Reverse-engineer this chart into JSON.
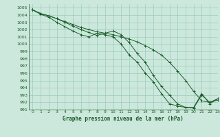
{
  "title": "Graphe pression niveau de la mer (hPa)",
  "bg_color": "#cce8dc",
  "grid_color": "#99ccbb",
  "line_color": "#1a5c2a",
  "xlim": [
    -0.5,
    23
  ],
  "ylim": [
    991,
    1005.5
  ],
  "xticks": [
    0,
    1,
    2,
    3,
    4,
    5,
    6,
    7,
    8,
    9,
    10,
    11,
    12,
    13,
    14,
    15,
    16,
    17,
    18,
    19,
    20,
    21,
    22,
    23
  ],
  "yticks": [
    991,
    992,
    993,
    994,
    995,
    996,
    997,
    998,
    999,
    1000,
    1001,
    1002,
    1003,
    1004,
    1005
  ],
  "series": [
    {
      "y": [
        1004.7,
        1004.2,
        1003.9,
        1003.5,
        1003.1,
        1002.7,
        1002.3,
        1002.0,
        1001.7,
        1001.5,
        1001.3,
        1001.0,
        1000.7,
        1000.3,
        999.8,
        999.2,
        998.5,
        997.5,
        996.3,
        995.0,
        993.5,
        992.2,
        992.0,
        992.5
      ],
      "marker": true
    },
    {
      "y": [
        1004.7,
        1004.2,
        1003.9,
        1003.5,
        1003.0,
        1002.5,
        1002.0,
        1001.6,
        1001.2,
        1001.5,
        1001.8,
        1001.3,
        1000.2,
        998.7,
        997.5,
        995.7,
        994.2,
        993.0,
        991.8,
        991.3,
        991.2,
        993.0,
        992.0,
        992.3
      ],
      "marker": true
    },
    {
      "y": [
        1004.7,
        1004.1,
        1003.7,
        1003.0,
        1002.4,
        1001.8,
        1001.3,
        1001.0,
        1001.5,
        1001.3,
        1001.0,
        1000.0,
        998.5,
        997.5,
        996.0,
        994.8,
        993.2,
        991.8,
        991.5,
        991.3,
        991.3,
        993.2,
        991.8,
        992.5
      ],
      "marker": true
    }
  ]
}
